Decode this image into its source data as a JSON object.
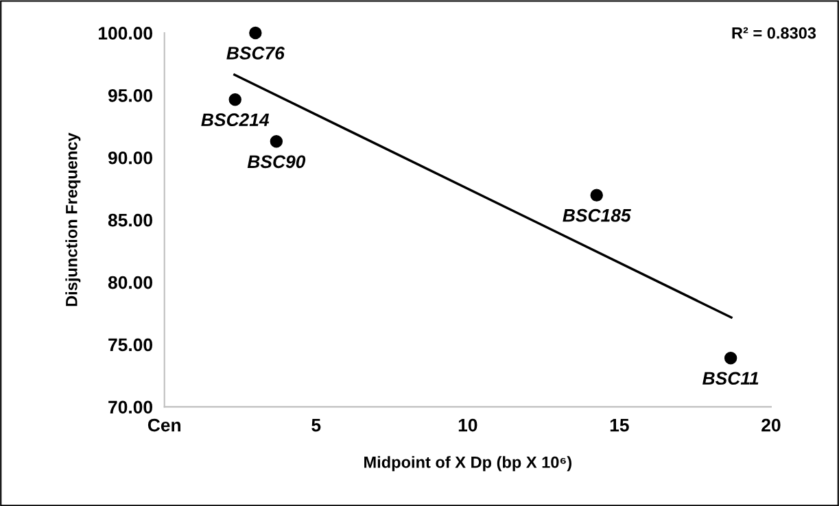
{
  "chart_data": {
    "type": "scatter",
    "xlabel": "Midpoint of X Dp (bp X 10⁶)",
    "ylabel": "Disjunction Frequency",
    "xlim": [
      0,
      20
    ],
    "xticks": [
      {
        "value": 0,
        "label": "Cen"
      },
      5,
      10,
      15,
      20
    ],
    "ylim": [
      70,
      100
    ],
    "yticks": [
      {
        "value": 70,
        "label": "70.00"
      },
      {
        "value": 75,
        "label": "75.00"
      },
      {
        "value": 80,
        "label": "80.00"
      },
      {
        "value": 85,
        "label": "85.00"
      },
      {
        "value": 90,
        "label": "90.00"
      },
      {
        "value": 95,
        "label": "95.00"
      },
      {
        "value": 100,
        "label": "100.00"
      }
    ],
    "series": [
      {
        "marker": "circle",
        "color": "#000000",
        "x": [
          3.0,
          2.33,
          3.69,
          14.25,
          18.67
        ],
        "values": [
          100,
          94.65,
          91.29,
          86.98,
          73.91
        ]
      },
      {
        "type": "line",
        "color": "#000000",
        "x": [
          2.31,
          18.69
        ],
        "values": [
          96.64,
          77.17
        ]
      }
    ],
    "annotations": [
      {
        "text": "BSC76",
        "x": 3.0,
        "y": 100
      },
      {
        "text": "BSC214",
        "x": 2.33,
        "y": 94.65
      },
      {
        "text": "BSC90",
        "x": 3.69,
        "y": 91.29
      },
      {
        "text": "BSC185",
        "x": 14.25,
        "y": 86.98
      },
      {
        "text": "BSC11",
        "x": 18.67,
        "y": 73.91
      },
      "R² = 0.8303"
    ]
  }
}
